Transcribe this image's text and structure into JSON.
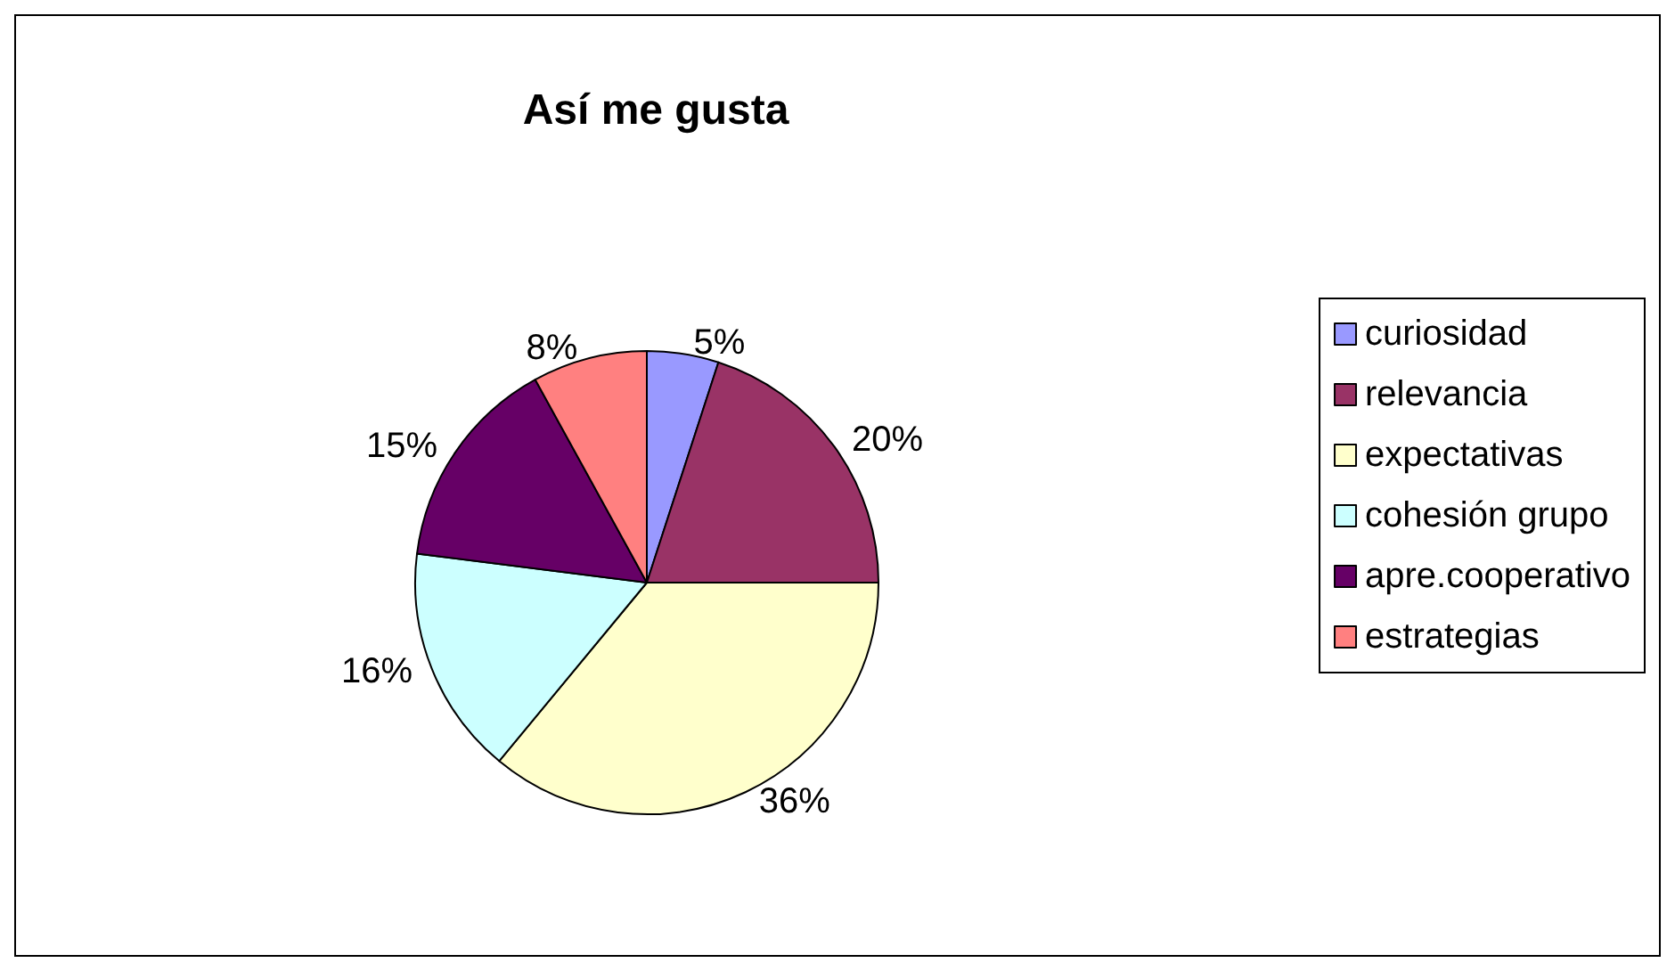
{
  "chart_data": {
    "type": "pie",
    "title": "Así me gusta",
    "categories": [
      "curiosidad",
      "relevancia",
      "expectativas",
      "cohesión grupo",
      "apre.cooperativo",
      "estrategias"
    ],
    "values": [
      5,
      20,
      36,
      16,
      15,
      8
    ],
    "value_labels": [
      "5%",
      "20%",
      "36%",
      "16%",
      "15%",
      "8%"
    ],
    "colors": [
      "#9999ff",
      "#993366",
      "#ffffcc",
      "#ccffff",
      "#660066",
      "#ff8080"
    ],
    "legend": "right"
  }
}
